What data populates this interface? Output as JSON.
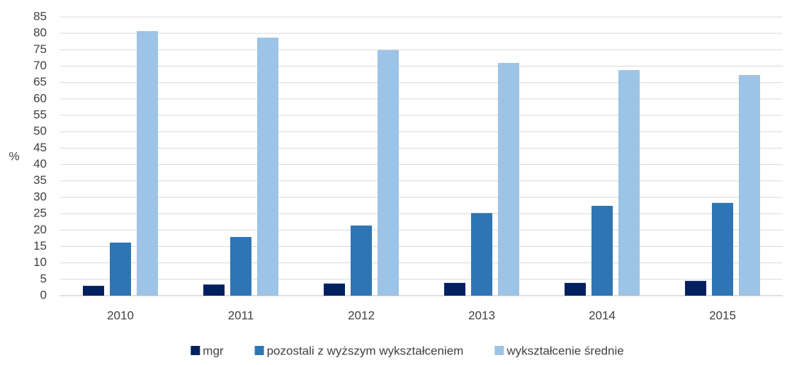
{
  "chart_data": {
    "type": "bar",
    "y_label": "%",
    "categories": [
      "2010",
      "2011",
      "2012",
      "2013",
      "2014",
      "2015"
    ],
    "series": [
      {
        "name": "mgr",
        "color": "#002060",
        "values": [
          3.0,
          3.4,
          3.7,
          3.9,
          3.9,
          4.5
        ]
      },
      {
        "name": "pozostali z wyższym wykształceniem",
        "color": "#2e75b6",
        "values": [
          16.2,
          17.9,
          21.4,
          25.2,
          27.4,
          28.3
        ]
      },
      {
        "name": "wykształcenie średnie",
        "color": "#9dc3e6",
        "values": [
          80.7,
          78.7,
          74.9,
          71.0,
          68.8,
          67.3
        ]
      }
    ],
    "ylim": [
      0,
      85
    ],
    "yticks": [
      0,
      5,
      10,
      15,
      20,
      25,
      30,
      35,
      40,
      45,
      50,
      55,
      60,
      65,
      70,
      75,
      80,
      85
    ],
    "grid": true,
    "legend": "bottom"
  }
}
